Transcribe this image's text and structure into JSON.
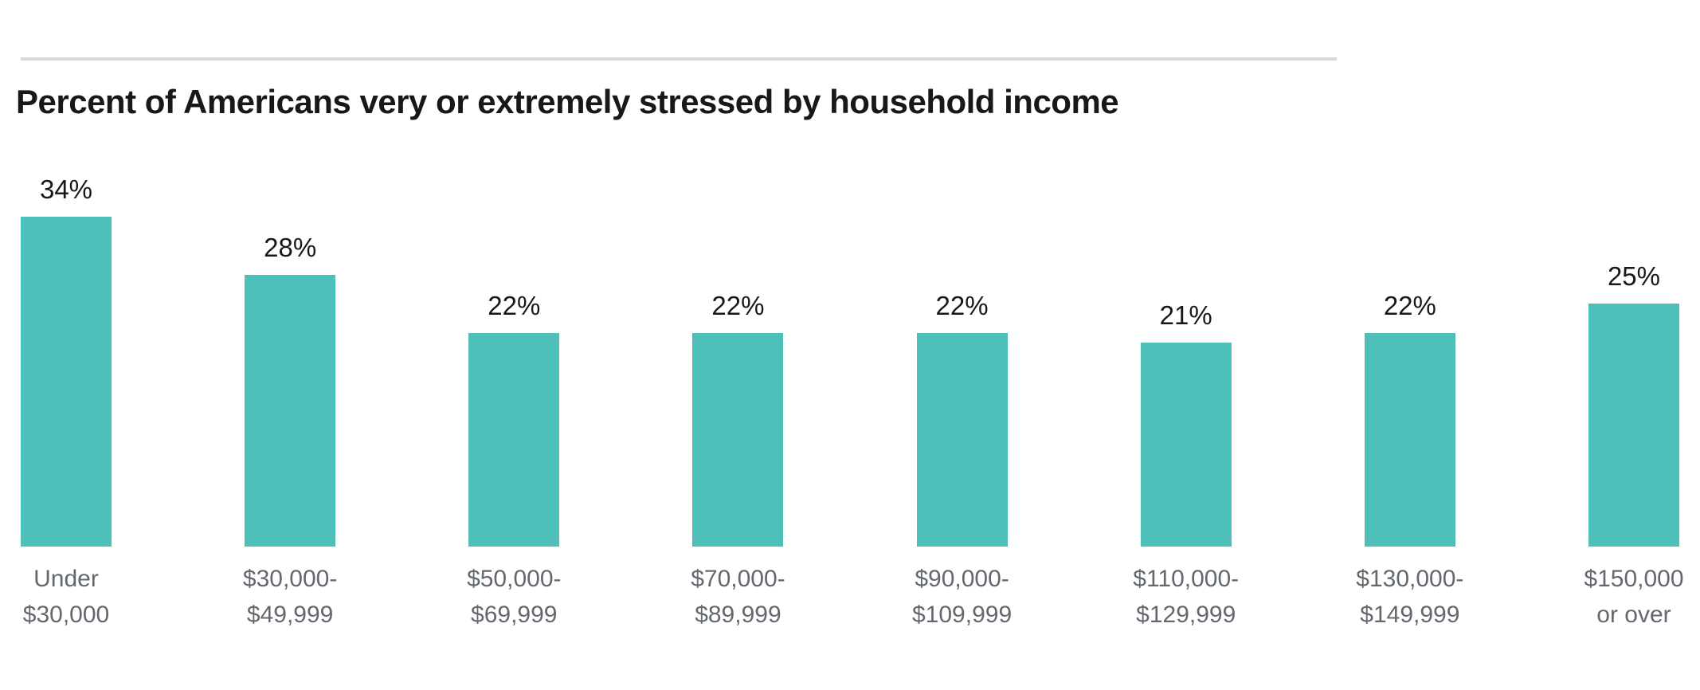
{
  "page": {
    "background_color": "#ffffff",
    "rule_color": "#d5d8dc"
  },
  "header": {
    "title": "Percent of Americans very or extremely stressed by household income"
  },
  "chart_data": {
    "type": "bar",
    "title": "Percent of Americans very or extremely stressed by household income",
    "categories": [
      "Under $30,000",
      "$30,000-$49,999",
      "$50,000-$69,999",
      "$70,000-$89,999",
      "$90,000-$109,999",
      "$110,000-$129,999",
      "$130,000-$149,999",
      "$150,000 or over"
    ],
    "tick_label_lines": [
      [
        "Under",
        "$30,000"
      ],
      [
        "$30,000-",
        "$49,999"
      ],
      [
        "$50,000-",
        "$69,999"
      ],
      [
        "$70,000-",
        "$89,999"
      ],
      [
        "$90,000-",
        "$109,999"
      ],
      [
        "$110,000-",
        "$129,999"
      ],
      [
        "$130,000-",
        "$149,999"
      ],
      [
        "$150,000",
        "or over"
      ]
    ],
    "values": [
      34,
      28,
      22,
      22,
      22,
      21,
      22,
      25
    ],
    "data_labels": [
      "34%",
      "28%",
      "22%",
      "22%",
      "22%",
      "21%",
      "22%",
      "25%"
    ],
    "unit": "%",
    "xlabel": "",
    "ylabel": "",
    "ylim": [
      0,
      40
    ],
    "axes_hidden": true,
    "grid": false,
    "legend": false,
    "bar_color": "#4cc0b9",
    "value_label_color": "#17181a",
    "tick_label_color": "#63686f"
  }
}
